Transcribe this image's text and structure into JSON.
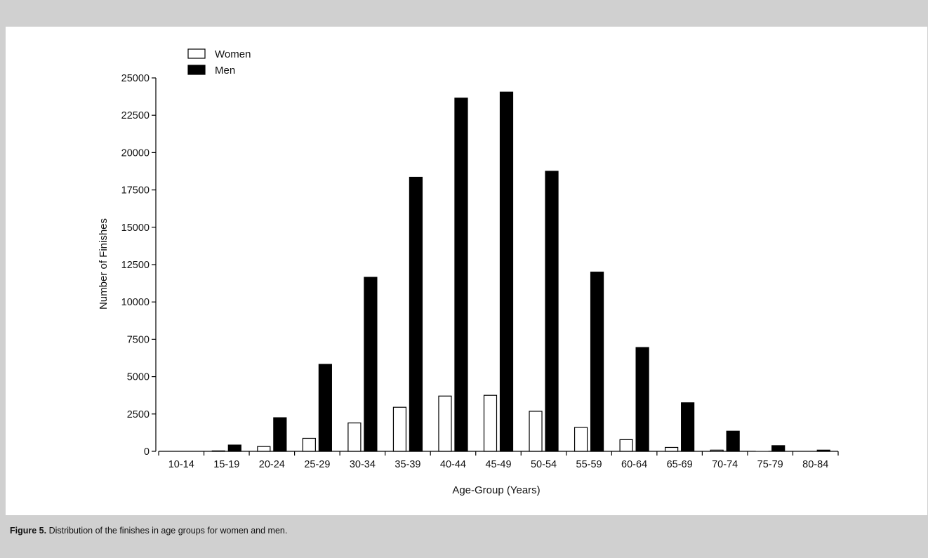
{
  "figure": {
    "label": "Figure 5.",
    "text": "Distribution of the finishes in age groups for women and men."
  },
  "chart_data": {
    "type": "bar",
    "title": "",
    "xlabel": "Age-Group (Years)",
    "ylabel": "Number of Finishes",
    "ylim": [
      0,
      25000
    ],
    "yticks": [
      0,
      2500,
      5000,
      7500,
      10000,
      12500,
      15000,
      17500,
      20000,
      22500,
      25000
    ],
    "grid": false,
    "legend_position": "top-left",
    "categories": [
      "10-14",
      "15-19",
      "20-24",
      "25-29",
      "30-34",
      "35-39",
      "40-44",
      "45-49",
      "50-54",
      "55-59",
      "60-64",
      "65-69",
      "70-74",
      "75-79",
      "80-84"
    ],
    "series": [
      {
        "name": "Women",
        "color": "#ffffff",
        "values": [
          0,
          30,
          320,
          870,
          1900,
          2950,
          3700,
          3750,
          2680,
          1600,
          780,
          260,
          80,
          10,
          0
        ]
      },
      {
        "name": "Men",
        "color": "#000000",
        "values": [
          10,
          420,
          2250,
          5820,
          11650,
          18350,
          23650,
          24050,
          18750,
          12000,
          6950,
          3250,
          1350,
          380,
          80
        ]
      }
    ]
  }
}
